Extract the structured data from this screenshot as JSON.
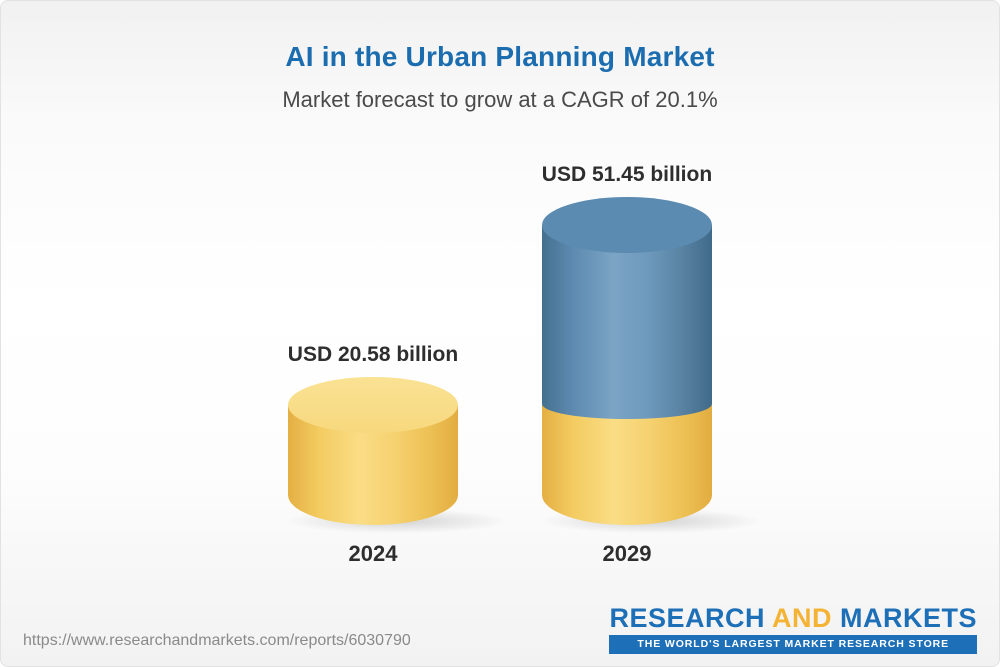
{
  "header": {
    "title": "AI in the Urban Planning Market",
    "subtitle": "Market forecast to grow at a CAGR of 20.1%"
  },
  "chart_data": {
    "type": "bar",
    "title": "AI in the Urban Planning Market",
    "subtitle": "Market forecast to grow at a CAGR of 20.1%",
    "cagr_percent": 20.1,
    "unit": "USD billion",
    "categories": [
      "2024",
      "2029"
    ],
    "values": [
      20.58,
      51.45
    ],
    "value_labels": [
      "USD 20.58 billion",
      "USD 51.45 billion"
    ],
    "bar_style": "3d-cylinder",
    "colors": {
      "bar_2024": "#f4ca5f",
      "bar_2029_top": "#5d8ab0",
      "bar_2029_base": "#f4ca5f",
      "title_text": "#1b6db0",
      "label_text": "#2e2e2e"
    },
    "legend_position": "none",
    "grid": false
  },
  "footer": {
    "url": "https://www.researchandmarkets.com/reports/6030790",
    "logo": {
      "research": "RESEARCH",
      "and": "AND",
      "markets": "MARKETS",
      "tagline": "THE WORLD'S LARGEST MARKET RESEARCH STORE"
    }
  }
}
